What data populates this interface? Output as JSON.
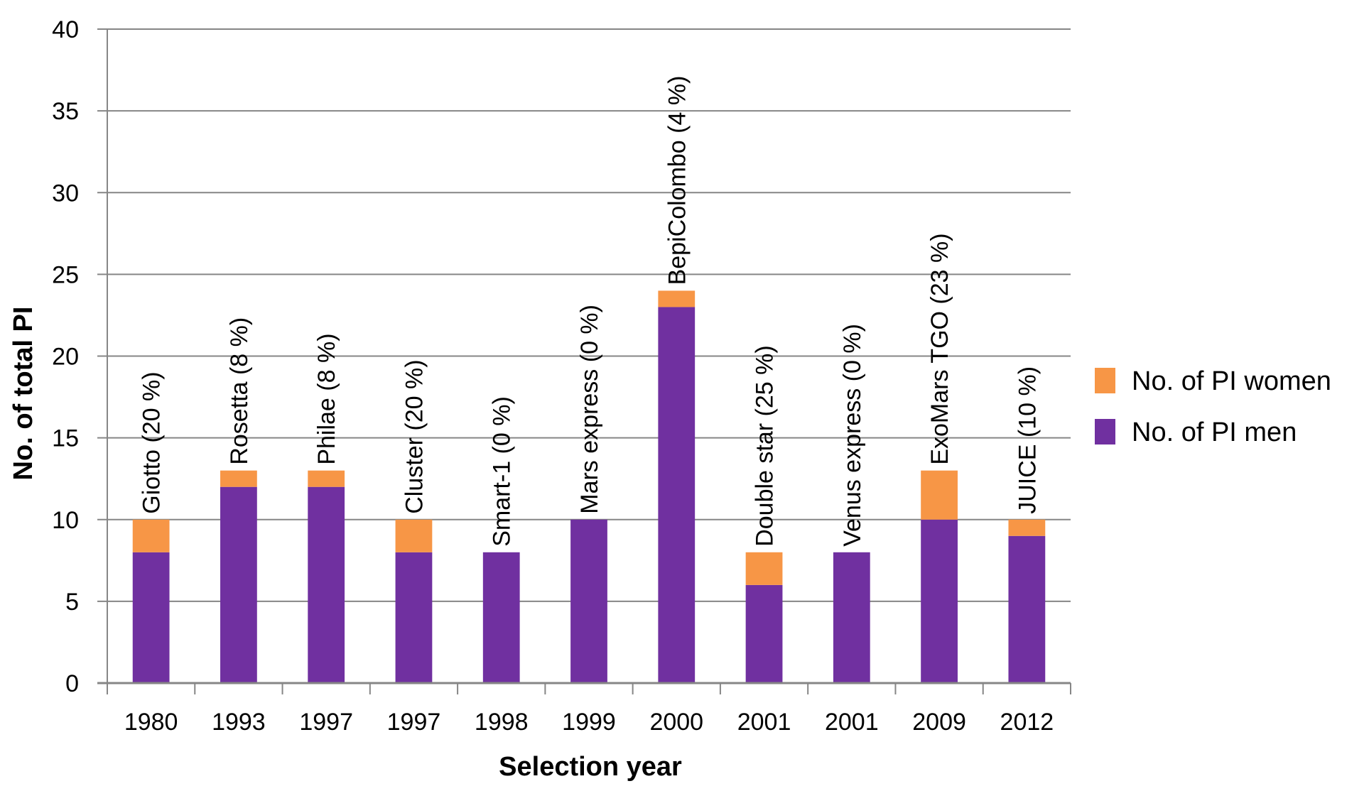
{
  "chart_data": {
    "type": "bar",
    "stacked": true,
    "title": "",
    "xlabel": "Selection year",
    "ylabel": "No. of total PI",
    "ylim": [
      0,
      40
    ],
    "yticks": [
      0,
      5,
      10,
      15,
      20,
      25,
      30,
      35,
      40
    ],
    "grid": true,
    "legend_position": "right",
    "categories": [
      "1980",
      "1993",
      "1997",
      "1997",
      "1998",
      "1999",
      "2000",
      "2001",
      "2001",
      "2009",
      "2012"
    ],
    "annotations": [
      "Giotto (20 %)",
      "Rosetta (8 %)",
      "Philae (8 %)",
      "Cluster (20 %)",
      "Smart-1 (0 %)",
      "Mars express (0 %)",
      "BepiColombo (4 %)",
      "Double star (25 %)",
      "Venus express (0 %)",
      "ExoMars TGO (23 %)",
      "JUICE (10 %)"
    ],
    "series": [
      {
        "name": "No. of PI men",
        "color": "#7030a0",
        "values": [
          8,
          12,
          12,
          8,
          8,
          10,
          23,
          6,
          8,
          10,
          9
        ]
      },
      {
        "name": "No. of PI women",
        "color": "#f79646",
        "values": [
          2,
          1,
          1,
          2,
          0,
          0,
          1,
          2,
          0,
          3,
          1
        ]
      }
    ],
    "legend": [
      {
        "name": "No. of PI women",
        "color": "#f79646"
      },
      {
        "name": "No. of PI men",
        "color": "#7030a0"
      }
    ]
  }
}
